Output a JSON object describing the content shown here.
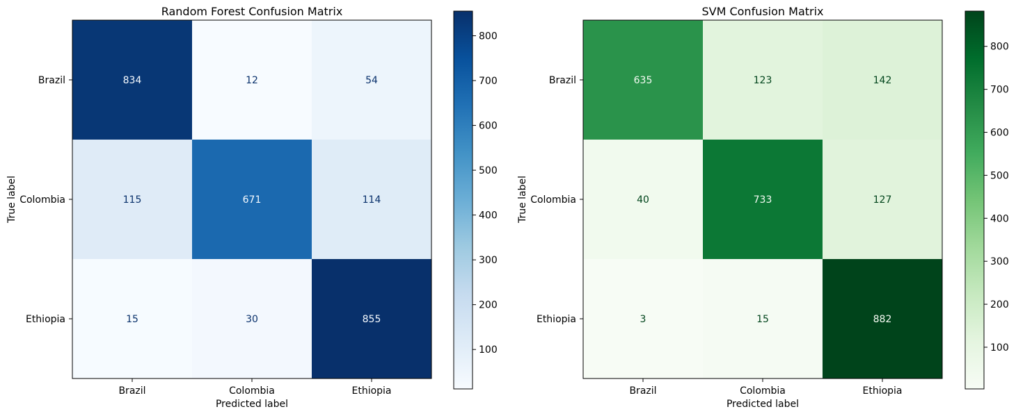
{
  "chart_data": [
    {
      "type": "heatmap",
      "title": "Random Forest Confusion Matrix",
      "xlabel": "Predicted label",
      "ylabel": "True label",
      "x_categories": [
        "Brazil",
        "Colombia",
        "Ethiopia"
      ],
      "y_categories": [
        "Brazil",
        "Colombia",
        "Ethiopia"
      ],
      "values": [
        [
          834,
          12,
          54
        ],
        [
          115,
          671,
          114
        ],
        [
          15,
          30,
          855
        ]
      ],
      "colormap": "Blues",
      "color_range": [
        12,
        855
      ],
      "colorbar_ticks": [
        100,
        200,
        300,
        400,
        500,
        600,
        700,
        800
      ],
      "colors": {
        "low": "#f7fbff",
        "high": "#08306b",
        "text_light": "#f7fbff",
        "text_dark": "#08306b"
      },
      "grid": false
    },
    {
      "type": "heatmap",
      "title": "SVM Confusion Matrix",
      "xlabel": "Predicted label",
      "ylabel": "True label",
      "x_categories": [
        "Brazil",
        "Colombia",
        "Ethiopia"
      ],
      "y_categories": [
        "Brazil",
        "Colombia",
        "Ethiopia"
      ],
      "values": [
        [
          635,
          123,
          142
        ],
        [
          40,
          733,
          127
        ],
        [
          3,
          15,
          882
        ]
      ],
      "colormap": "Greens",
      "color_range": [
        3,
        882
      ],
      "colorbar_ticks": [
        100,
        200,
        300,
        400,
        500,
        600,
        700,
        800
      ],
      "colors": {
        "low": "#f7fcf5",
        "high": "#00441b",
        "text_light": "#f7fcf5",
        "text_dark": "#00441b"
      },
      "grid": false
    }
  ]
}
